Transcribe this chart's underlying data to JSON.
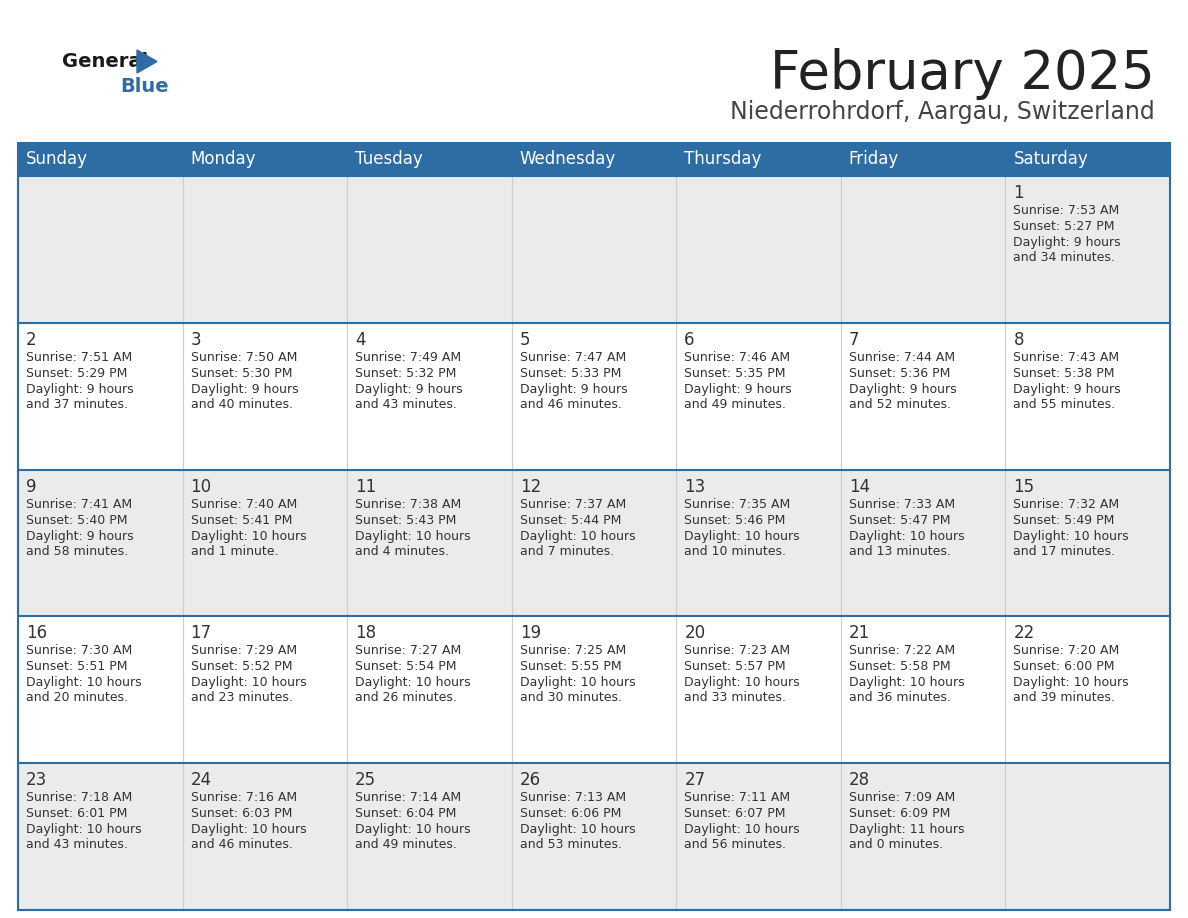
{
  "title": "February 2025",
  "subtitle": "Niederrohrdorf, Aargau, Switzerland",
  "header_bg": "#2e6da4",
  "header_text_color": "#ffffff",
  "row_bg": [
    "#ebebeb",
    "#ffffff",
    "#ebebeb",
    "#ffffff",
    "#ebebeb"
  ],
  "border_color": "#2e6da4",
  "text_color": "#333333",
  "day_names": [
    "Sunday",
    "Monday",
    "Tuesday",
    "Wednesday",
    "Thursday",
    "Friday",
    "Saturday"
  ],
  "title_color": "#222222",
  "subtitle_color": "#444444",
  "days": [
    {
      "day": 1,
      "col": 6,
      "row": 0,
      "sunrise": "7:53 AM",
      "sunset": "5:27 PM",
      "daylight": "9 hours and 34 minutes."
    },
    {
      "day": 2,
      "col": 0,
      "row": 1,
      "sunrise": "7:51 AM",
      "sunset": "5:29 PM",
      "daylight": "9 hours and 37 minutes."
    },
    {
      "day": 3,
      "col": 1,
      "row": 1,
      "sunrise": "7:50 AM",
      "sunset": "5:30 PM",
      "daylight": "9 hours and 40 minutes."
    },
    {
      "day": 4,
      "col": 2,
      "row": 1,
      "sunrise": "7:49 AM",
      "sunset": "5:32 PM",
      "daylight": "9 hours and 43 minutes."
    },
    {
      "day": 5,
      "col": 3,
      "row": 1,
      "sunrise": "7:47 AM",
      "sunset": "5:33 PM",
      "daylight": "9 hours and 46 minutes."
    },
    {
      "day": 6,
      "col": 4,
      "row": 1,
      "sunrise": "7:46 AM",
      "sunset": "5:35 PM",
      "daylight": "9 hours and 49 minutes."
    },
    {
      "day": 7,
      "col": 5,
      "row": 1,
      "sunrise": "7:44 AM",
      "sunset": "5:36 PM",
      "daylight": "9 hours and 52 minutes."
    },
    {
      "day": 8,
      "col": 6,
      "row": 1,
      "sunrise": "7:43 AM",
      "sunset": "5:38 PM",
      "daylight": "9 hours and 55 minutes."
    },
    {
      "day": 9,
      "col": 0,
      "row": 2,
      "sunrise": "7:41 AM",
      "sunset": "5:40 PM",
      "daylight": "9 hours and 58 minutes."
    },
    {
      "day": 10,
      "col": 1,
      "row": 2,
      "sunrise": "7:40 AM",
      "sunset": "5:41 PM",
      "daylight": "10 hours and 1 minute."
    },
    {
      "day": 11,
      "col": 2,
      "row": 2,
      "sunrise": "7:38 AM",
      "sunset": "5:43 PM",
      "daylight": "10 hours and 4 minutes."
    },
    {
      "day": 12,
      "col": 3,
      "row": 2,
      "sunrise": "7:37 AM",
      "sunset": "5:44 PM",
      "daylight": "10 hours and 7 minutes."
    },
    {
      "day": 13,
      "col": 4,
      "row": 2,
      "sunrise": "7:35 AM",
      "sunset": "5:46 PM",
      "daylight": "10 hours and 10 minutes."
    },
    {
      "day": 14,
      "col": 5,
      "row": 2,
      "sunrise": "7:33 AM",
      "sunset": "5:47 PM",
      "daylight": "10 hours and 13 minutes."
    },
    {
      "day": 15,
      "col": 6,
      "row": 2,
      "sunrise": "7:32 AM",
      "sunset": "5:49 PM",
      "daylight": "10 hours and 17 minutes."
    },
    {
      "day": 16,
      "col": 0,
      "row": 3,
      "sunrise": "7:30 AM",
      "sunset": "5:51 PM",
      "daylight": "10 hours and 20 minutes."
    },
    {
      "day": 17,
      "col": 1,
      "row": 3,
      "sunrise": "7:29 AM",
      "sunset": "5:52 PM",
      "daylight": "10 hours and 23 minutes."
    },
    {
      "day": 18,
      "col": 2,
      "row": 3,
      "sunrise": "7:27 AM",
      "sunset": "5:54 PM",
      "daylight": "10 hours and 26 minutes."
    },
    {
      "day": 19,
      "col": 3,
      "row": 3,
      "sunrise": "7:25 AM",
      "sunset": "5:55 PM",
      "daylight": "10 hours and 30 minutes."
    },
    {
      "day": 20,
      "col": 4,
      "row": 3,
      "sunrise": "7:23 AM",
      "sunset": "5:57 PM",
      "daylight": "10 hours and 33 minutes."
    },
    {
      "day": 21,
      "col": 5,
      "row": 3,
      "sunrise": "7:22 AM",
      "sunset": "5:58 PM",
      "daylight": "10 hours and 36 minutes."
    },
    {
      "day": 22,
      "col": 6,
      "row": 3,
      "sunrise": "7:20 AM",
      "sunset": "6:00 PM",
      "daylight": "10 hours and 39 minutes."
    },
    {
      "day": 23,
      "col": 0,
      "row": 4,
      "sunrise": "7:18 AM",
      "sunset": "6:01 PM",
      "daylight": "10 hours and 43 minutes."
    },
    {
      "day": 24,
      "col": 1,
      "row": 4,
      "sunrise": "7:16 AM",
      "sunset": "6:03 PM",
      "daylight": "10 hours and 46 minutes."
    },
    {
      "day": 25,
      "col": 2,
      "row": 4,
      "sunrise": "7:14 AM",
      "sunset": "6:04 PM",
      "daylight": "10 hours and 49 minutes."
    },
    {
      "day": 26,
      "col": 3,
      "row": 4,
      "sunrise": "7:13 AM",
      "sunset": "6:06 PM",
      "daylight": "10 hours and 53 minutes."
    },
    {
      "day": 27,
      "col": 4,
      "row": 4,
      "sunrise": "7:11 AM",
      "sunset": "6:07 PM",
      "daylight": "10 hours and 56 minutes."
    },
    {
      "day": 28,
      "col": 5,
      "row": 4,
      "sunrise": "7:09 AM",
      "sunset": "6:09 PM",
      "daylight": "11 hours and 0 minutes."
    }
  ]
}
